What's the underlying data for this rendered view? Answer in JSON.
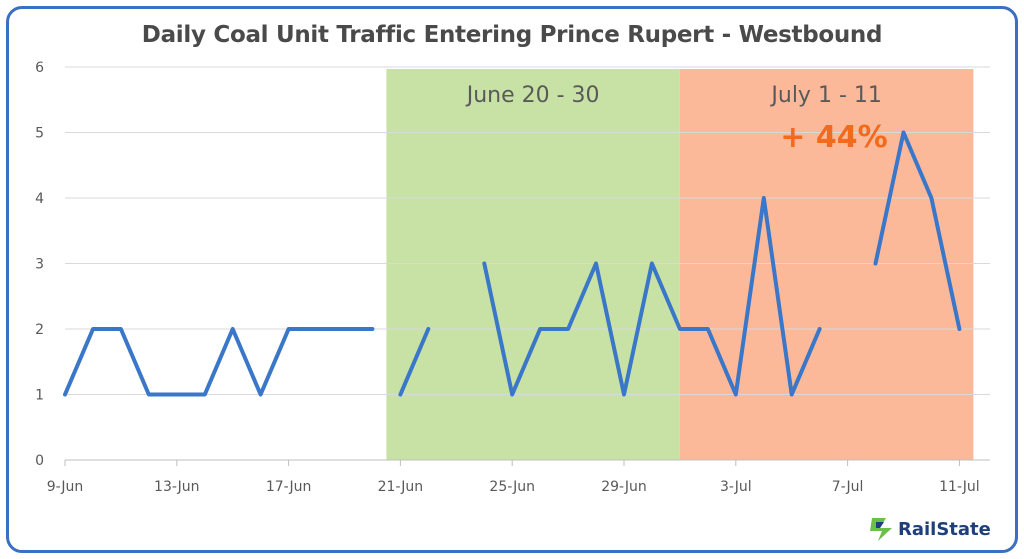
{
  "chart_data": {
    "type": "line",
    "title": "Daily Coal Unit Traffic Entering Prince Rupert - Westbound",
    "xlabel": "",
    "ylabel": "",
    "ylim": [
      0,
      6
    ],
    "yticks": [
      "0",
      "1",
      "2",
      "3",
      "4",
      "5",
      "6"
    ],
    "xticks": [
      "9-Jun",
      "13-Jun",
      "17-Jun",
      "21-Jun",
      "25-Jun",
      "29-Jun",
      "3-Jul",
      "7-Jul",
      "11-Jul"
    ],
    "grid": true,
    "color": "#3a77c9",
    "series_segments": [
      {
        "x": [
          "9-Jun",
          "10-Jun",
          "11-Jun",
          "12-Jun",
          "13-Jun",
          "14-Jun",
          "15-Jun",
          "16-Jun",
          "17-Jun",
          "18-Jun",
          "19-Jun",
          "20-Jun"
        ],
        "values": [
          1,
          2,
          2,
          1,
          1,
          1,
          2,
          1,
          2,
          2,
          2,
          2
        ]
      },
      {
        "x": [
          "21-Jun",
          "22-Jun"
        ],
        "values": [
          1,
          2
        ]
      },
      {
        "x": [
          "24-Jun",
          "25-Jun",
          "26-Jun",
          "27-Jun",
          "28-Jun",
          "29-Jun",
          "30-Jun",
          "1-Jul",
          "2-Jul",
          "3-Jul",
          "4-Jul",
          "5-Jul",
          "6-Jul"
        ],
        "values": [
          3,
          1,
          2,
          2,
          3,
          1,
          3,
          2,
          2,
          1,
          4,
          1,
          2
        ]
      },
      {
        "x": [
          "8-Jul",
          "9-Jul",
          "10-Jul",
          "11-Jul"
        ],
        "values": [
          3,
          5,
          4,
          2
        ]
      }
    ],
    "regions": [
      {
        "label": "June 20 - 30",
        "from": "20.5-Jun",
        "to": "1-Jul",
        "color": "#c8e2a6"
      },
      {
        "label": "July 1 - 11",
        "from": "1-Jul",
        "to": "11.5-Jul",
        "color": "#fbb99a",
        "annotation": "+ 44%",
        "annotation_color": "#f26a1b"
      }
    ]
  },
  "brand": {
    "name": "RailState",
    "color": "#1f3f7a",
    "icon": "railstate-logo-icon"
  }
}
